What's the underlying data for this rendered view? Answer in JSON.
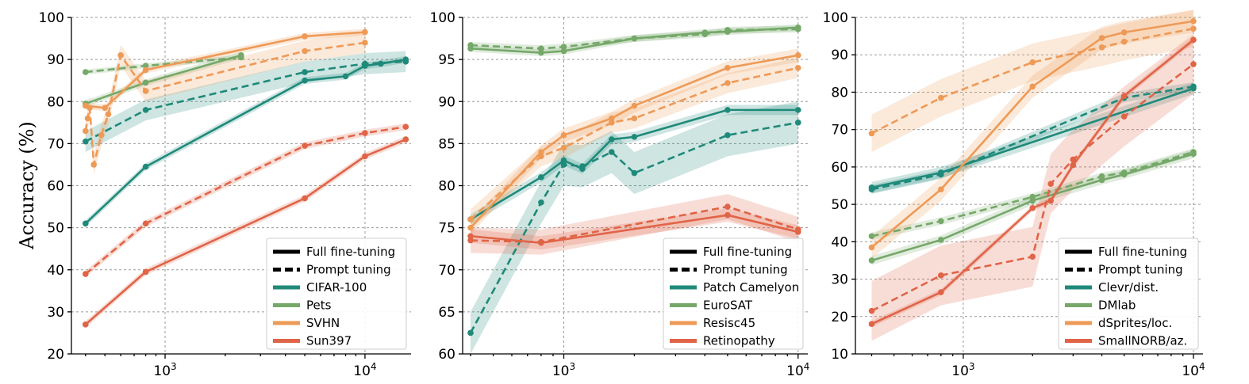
{
  "ylabel": "Accuracy (%)",
  "chart_data": [
    {
      "type": "line",
      "xscale": "log",
      "xlim": [
        340,
        17000
      ],
      "ylim": [
        20,
        100
      ],
      "yticks": [
        20,
        30,
        40,
        50,
        60,
        70,
        80,
        90,
        100
      ],
      "xticks": [
        {
          "value": 1000,
          "base": "10",
          "exp": "3"
        },
        {
          "value": 10000,
          "base": "10",
          "exp": "4"
        }
      ],
      "grid": true,
      "legend_position": "lower-right",
      "legend": {
        "styles": [
          {
            "label": "Full fine-tuning",
            "dash": "solid"
          },
          {
            "label": "Prompt tuning",
            "dash": "dashed"
          }
        ],
        "datasets": [
          {
            "label": "CIFAR-100",
            "color": "#1f8a7a"
          },
          {
            "label": "Pets",
            "color": "#75a869"
          },
          {
            "label": "SVHN",
            "color": "#ee9a57"
          },
          {
            "label": "Sun397",
            "color": "#e06447"
          }
        ]
      },
      "series": [
        {
          "dataset": "CIFAR-100",
          "style": "Full fine-tuning",
          "color": "#1f8a7a",
          "band": 0.8,
          "x": [
            400,
            800,
            5000,
            8000,
            10000,
            12000,
            16000
          ],
          "y": [
            51,
            64.5,
            85,
            86,
            88.5,
            89,
            90
          ]
        },
        {
          "dataset": "CIFAR-100",
          "style": "Prompt tuning",
          "color": "#1f8a7a",
          "band": 2.5,
          "x": [
            400,
            800,
            5000,
            10000,
            16000
          ],
          "y": [
            70.5,
            78,
            87,
            89,
            89.5
          ]
        },
        {
          "dataset": "Pets",
          "style": "Full fine-tuning",
          "color": "#75a869",
          "band": 0.8,
          "x": [
            400,
            800,
            2400
          ],
          "y": [
            79.5,
            84.5,
            91
          ]
        },
        {
          "dataset": "Pets",
          "style": "Prompt tuning",
          "color": "#75a869",
          "band": 0.6,
          "x": [
            400,
            800,
            2400
          ],
          "y": [
            87,
            88.5,
            90.5
          ]
        },
        {
          "dataset": "SVHN",
          "style": "Full fine-tuning",
          "color": "#ee9a57",
          "band": 0.8,
          "x": [
            400,
            500,
            800,
            5000,
            10000
          ],
          "y": [
            79,
            78.5,
            87.5,
            95.5,
            96.5
          ]
        },
        {
          "dataset": "SVHN",
          "style": "Prompt tuning",
          "color": "#ee9a57",
          "band": 2.5,
          "x": [
            400,
            410,
            420,
            440,
            480,
            520,
            600,
            800,
            5000,
            10000
          ],
          "y": [
            73,
            76,
            78.5,
            65,
            72,
            77,
            91,
            82.5,
            92,
            94
          ]
        },
        {
          "dataset": "Sun397",
          "style": "Full fine-tuning",
          "color": "#e06447",
          "band": 0.8,
          "x": [
            400,
            800,
            5000,
            10000,
            16000
          ],
          "y": [
            27,
            39.5,
            57,
            67,
            71
          ]
        },
        {
          "dataset": "Sun397",
          "style": "Prompt tuning",
          "color": "#e06447",
          "band": 0.8,
          "x": [
            400,
            800,
            5000,
            10000,
            16000
          ],
          "y": [
            39,
            51,
            69.5,
            72.5,
            74
          ]
        }
      ]
    },
    {
      "type": "line",
      "xscale": "log",
      "xlim": [
        370,
        11000
      ],
      "ylim": [
        60,
        100
      ],
      "yticks": [
        60,
        65,
        70,
        75,
        80,
        85,
        90,
        95,
        100
      ],
      "xticks": [
        {
          "value": 1000,
          "base": "10",
          "exp": "3"
        },
        {
          "value": 10000,
          "base": "10",
          "exp": "4"
        }
      ],
      "grid": true,
      "legend_position": "lower-right",
      "legend": {
        "styles": [
          {
            "label": "Full fine-tuning",
            "dash": "solid"
          },
          {
            "label": "Prompt tuning",
            "dash": "dashed"
          }
        ],
        "datasets": [
          {
            "label": "Patch Camelyon",
            "color": "#1f8a7a"
          },
          {
            "label": "EuroSAT",
            "color": "#75a869"
          },
          {
            "label": "Resisc45",
            "color": "#ee9a57"
          },
          {
            "label": "Retinopathy",
            "color": "#e06447"
          }
        ]
      },
      "series": [
        {
          "dataset": "Patch Camelyon",
          "style": "Full fine-tuning",
          "color": "#1f8a7a",
          "band": 0.6,
          "x": [
            400,
            800,
            1000,
            1200,
            1600,
            2000,
            5000,
            10000
          ],
          "y": [
            76,
            81,
            83,
            82,
            85.5,
            85.8,
            89,
            89
          ]
        },
        {
          "dataset": "Patch Camelyon",
          "style": "Prompt tuning",
          "color": "#1f8a7a",
          "band": 2.5,
          "x": [
            400,
            800,
            1000,
            1200,
            1600,
            2000,
            5000,
            10000
          ],
          "y": [
            62.5,
            78,
            82.5,
            82.3,
            84,
            81.5,
            86,
            87.5
          ]
        },
        {
          "dataset": "EuroSAT",
          "style": "Full fine-tuning",
          "color": "#75a869",
          "band": 0.4,
          "x": [
            400,
            800,
            1000,
            2000,
            4000,
            5000,
            10000
          ],
          "y": [
            96.3,
            95.8,
            96,
            97.5,
            98.2,
            98.3,
            98.8
          ]
        },
        {
          "dataset": "EuroSAT",
          "style": "Prompt tuning",
          "color": "#75a869",
          "band": 0.4,
          "x": [
            400,
            800,
            1000,
            2000,
            4000,
            5000,
            10000
          ],
          "y": [
            96.7,
            96.3,
            96.5,
            97.5,
            98,
            98.5,
            98.6
          ]
        },
        {
          "dataset": "Resisc45",
          "style": "Full fine-tuning",
          "color": "#ee9a57",
          "band": 0.8,
          "x": [
            400,
            800,
            1000,
            1600,
            2000,
            5000,
            10000
          ],
          "y": [
            75,
            84,
            86,
            88,
            89.5,
            94,
            95.5
          ]
        },
        {
          "dataset": "Resisc45",
          "style": "Prompt tuning",
          "color": "#ee9a57",
          "band": 1.2,
          "x": [
            400,
            800,
            1000,
            1600,
            2000,
            5000,
            10000
          ],
          "y": [
            76,
            83.5,
            84.5,
            87.5,
            88,
            92.2,
            94
          ]
        },
        {
          "dataset": "Retinopathy",
          "style": "Full fine-tuning",
          "color": "#e06447",
          "band": 0.8,
          "x": [
            400,
            800,
            5000,
            10000
          ],
          "y": [
            74,
            73.2,
            76.5,
            74.5
          ]
        },
        {
          "dataset": "Retinopathy",
          "style": "Prompt tuning",
          "color": "#e06447",
          "band": 1.5,
          "x": [
            400,
            800,
            5000,
            10000
          ],
          "y": [
            73.5,
            73.3,
            77.5,
            74.8
          ]
        }
      ]
    },
    {
      "type": "line",
      "xscale": "log",
      "xlim": [
        340,
        11000
      ],
      "ylim": [
        10,
        100
      ],
      "yticks": [
        10,
        20,
        30,
        40,
        50,
        60,
        70,
        80,
        90,
        100
      ],
      "xticks": [
        {
          "value": 1000,
          "base": "10",
          "exp": "3"
        },
        {
          "value": 10000,
          "base": "10",
          "exp": "4"
        }
      ],
      "grid": true,
      "legend_position": "lower-right",
      "legend": {
        "styles": [
          {
            "label": "Full fine-tuning",
            "dash": "solid"
          },
          {
            "label": "Prompt tuning",
            "dash": "dashed"
          }
        ],
        "datasets": [
          {
            "label": "Clevr/dist.",
            "color": "#1f8a7a"
          },
          {
            "label": "DMlab",
            "color": "#75a869"
          },
          {
            "label": "dSprites/loc.",
            "color": "#ee9a57"
          },
          {
            "label": "SmallNORB/az.",
            "color": "#e06447"
          }
        ]
      },
      "series": [
        {
          "dataset": "Clevr/dist.",
          "style": "Full fine-tuning",
          "color": "#1f8a7a",
          "band": 1.5,
          "x": [
            400,
            800,
            10000
          ],
          "y": [
            54.5,
            58.5,
            81
          ]
        },
        {
          "dataset": "Clevr/dist.",
          "style": "Prompt tuning",
          "color": "#1f8a7a",
          "band": 1.2,
          "x": [
            400,
            800,
            5000,
            10000
          ],
          "y": [
            54,
            58,
            78.5,
            81.5
          ]
        },
        {
          "dataset": "DMlab",
          "style": "Full fine-tuning",
          "color": "#75a869",
          "band": 1.2,
          "x": [
            400,
            800,
            2000,
            4000,
            5000,
            10000
          ],
          "y": [
            35,
            40.5,
            51,
            56.5,
            58,
            63.5
          ]
        },
        {
          "dataset": "DMlab",
          "style": "Prompt tuning",
          "color": "#75a869",
          "band": 1.0,
          "x": [
            400,
            800,
            2000,
            4000,
            5000,
            10000
          ],
          "y": [
            41.5,
            45.5,
            52,
            57.5,
            58.5,
            64
          ]
        },
        {
          "dataset": "dSprites/loc.",
          "style": "Full fine-tuning",
          "color": "#ee9a57",
          "band": 3.0,
          "x": [
            400,
            800,
            2000,
            4000,
            5000,
            10000
          ],
          "y": [
            38.5,
            54,
            81.5,
            94.5,
            96,
            99
          ]
        },
        {
          "dataset": "dSprites/loc.",
          "style": "Prompt tuning",
          "color": "#ee9a57",
          "band": 5.0,
          "x": [
            400,
            800,
            2000,
            4000,
            5000,
            10000
          ],
          "y": [
            69,
            78.5,
            88,
            92,
            93.5,
            97
          ]
        },
        {
          "dataset": "SmallNORB/az.",
          "style": "Full fine-tuning",
          "color": "#e06447",
          "band": 0.8,
          "x": [
            400,
            800,
            2000,
            2400,
            3000,
            5000,
            10000
          ],
          "y": [
            18,
            26.5,
            49,
            51,
            60.5,
            79,
            94
          ]
        },
        {
          "dataset": "SmallNORB/az.",
          "style": "Prompt tuning",
          "color": "#e06447",
          "band": 8.0,
          "x": [
            400,
            800,
            2000,
            2400,
            3000,
            5000,
            10000
          ],
          "y": [
            21.5,
            31,
            36,
            55.5,
            62,
            73.5,
            87.5
          ]
        }
      ]
    }
  ]
}
